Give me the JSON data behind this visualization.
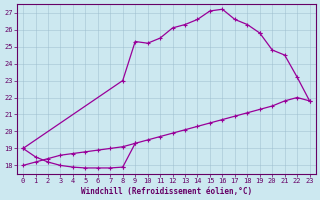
{
  "background_color": "#cce8f0",
  "line_color": "#990099",
  "xlabel": "Windchill (Refroidissement éolien,°C)",
  "xlim": [
    -0.5,
    23.5
  ],
  "ylim": [
    17.5,
    27.5
  ],
  "yticks": [
    18,
    19,
    20,
    21,
    22,
    23,
    24,
    25,
    26,
    27
  ],
  "xticks": [
    0,
    1,
    2,
    3,
    4,
    5,
    6,
    7,
    8,
    9,
    10,
    11,
    12,
    13,
    14,
    15,
    16,
    17,
    18,
    19,
    20,
    21,
    22,
    23
  ],
  "segments": [
    {
      "x": [
        0,
        1,
        2,
        3,
        4,
        5,
        6,
        7,
        8
      ],
      "y": [
        19.0,
        18.5,
        18.2,
        18.0,
        17.9,
        17.85,
        17.85,
        17.85,
        17.9
      ]
    },
    {
      "x": [
        0,
        8,
        9,
        10,
        11,
        12,
        13,
        14,
        15,
        16,
        17,
        18,
        19
      ],
      "y": [
        19.0,
        23.0,
        25.3,
        25.2,
        25.5,
        26.1,
        26.3,
        26.6,
        27.1,
        27.2,
        26.6,
        26.3,
        25.8
      ]
    },
    {
      "x": [
        0,
        1,
        2,
        3,
        4,
        5,
        6,
        7,
        8,
        9,
        10,
        11,
        12,
        13,
        14,
        15,
        16,
        17,
        18,
        19,
        20,
        21,
        22,
        23
      ],
      "y": [
        18.0,
        18.2,
        18.4,
        18.6,
        18.7,
        18.8,
        18.9,
        19.0,
        19.1,
        19.3,
        19.5,
        19.7,
        19.9,
        20.1,
        20.3,
        20.5,
        20.7,
        20.9,
        21.1,
        21.3,
        21.5,
        21.8,
        22.0,
        21.8
      ]
    },
    {
      "x": [
        19,
        20,
        21,
        22,
        23
      ],
      "y": [
        25.8,
        24.8,
        24.5,
        23.2,
        21.8
      ]
    },
    {
      "x": [
        8,
        9
      ],
      "y": [
        17.9,
        19.3
      ]
    }
  ]
}
